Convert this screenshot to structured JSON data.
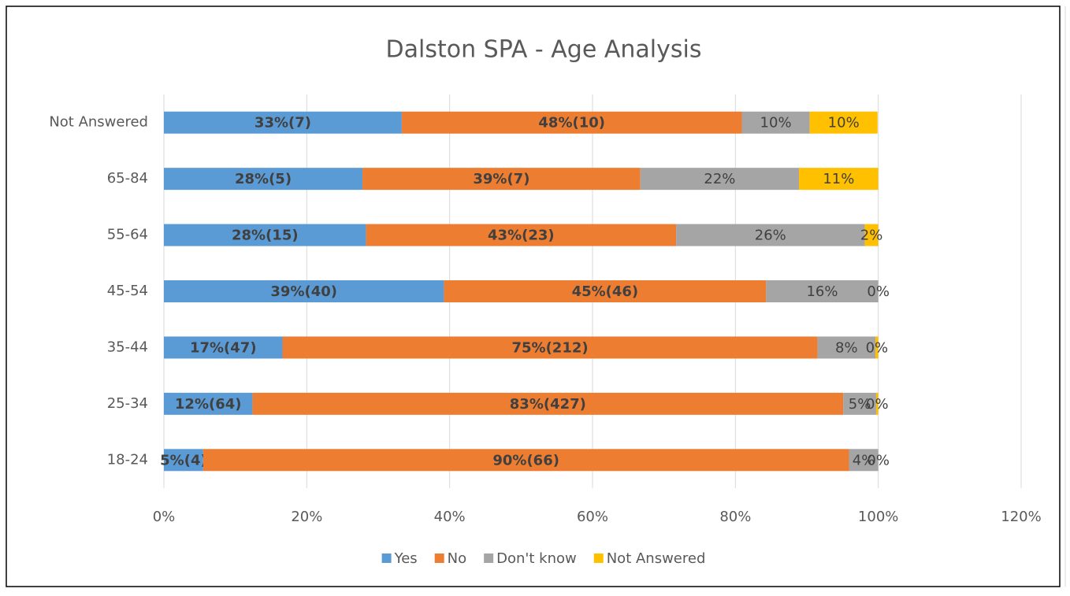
{
  "chart_data": {
    "type": "stacked-bar-horizontal",
    "title": "Dalston SPA - Age Analysis",
    "categories": [
      "Not Answered",
      "65-84",
      "55-64",
      "45-54",
      "35-44",
      "25-34",
      "18-24"
    ],
    "series": [
      {
        "name": "Yes",
        "color": "#5b9bd5",
        "values": [
          33.3,
          27.8,
          28.3,
          39.2,
          16.6,
          12.4,
          5.5
        ],
        "value_labels": [
          "33%(7)",
          "28%(5)",
          "28%(15)",
          "39%(40)",
          "17%(47)",
          "12%(64)",
          "5%(4)"
        ]
      },
      {
        "name": "No",
        "color": "#ed7d31",
        "values": [
          47.6,
          38.9,
          43.4,
          45.1,
          74.9,
          82.7,
          90.4
        ],
        "value_labels": [
          "48%(10)",
          "39%(7)",
          "43%(23)",
          "45%(46)",
          "75%(212)",
          "83%(427)",
          "90%(66)"
        ]
      },
      {
        "name": "Don't know",
        "color": "#a5a5a5",
        "values": [
          9.5,
          22.2,
          26.4,
          15.7,
          8.1,
          4.6,
          4.1
        ],
        "value_labels": [
          "10%",
          "22%",
          "26%",
          "16%",
          "8%",
          "5%",
          "4%"
        ]
      },
      {
        "name": "Not Answered",
        "color": "#ffc000",
        "values": [
          9.5,
          11.1,
          1.9,
          0,
          0.4,
          0.3,
          0
        ],
        "value_labels": [
          "10%",
          "11%",
          "2%",
          "0%",
          "0%",
          "0%",
          "0%"
        ]
      }
    ],
    "xlim": [
      0,
      120
    ],
    "xticks": [
      {
        "value": 0,
        "label": "0%"
      },
      {
        "value": 20,
        "label": "20%"
      },
      {
        "value": 40,
        "label": "40%"
      },
      {
        "value": 60,
        "label": "60%"
      },
      {
        "value": 80,
        "label": "80%"
      },
      {
        "value": 100,
        "label": "100%"
      },
      {
        "value": 120,
        "label": "120%"
      }
    ],
    "grid": true,
    "legend": "bottom"
  }
}
